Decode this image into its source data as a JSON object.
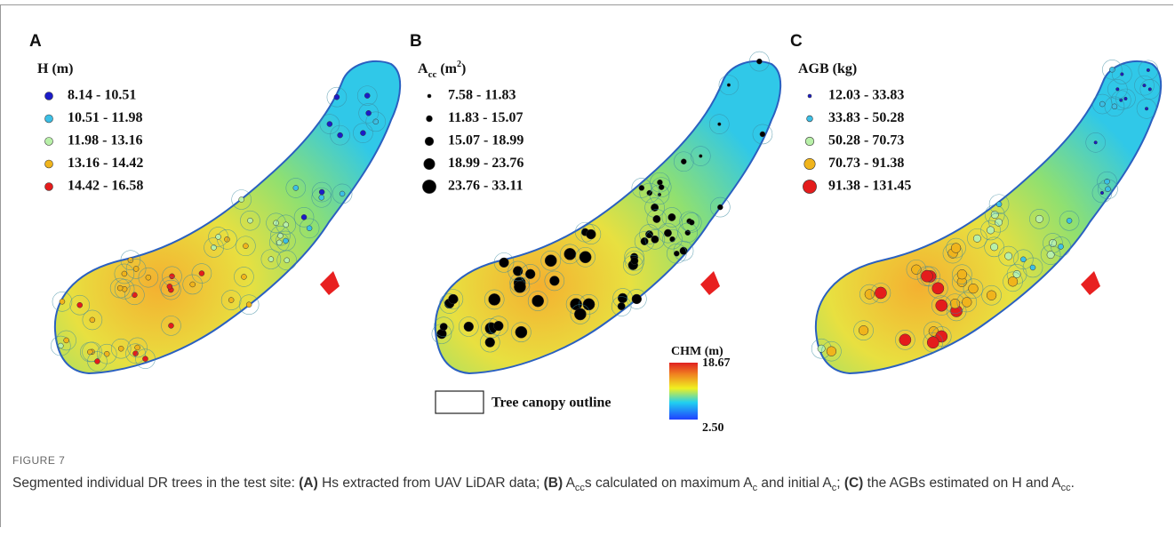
{
  "panels": [
    {
      "letter": "A",
      "legend_title": [
        {
          "text": "H (m)",
          "style": "normal"
        }
      ],
      "legend_items": [
        "8.14 - 10.51",
        "10.51 - 11.98",
        "11.98 - 13.16",
        "13.16 - 14.42",
        "14.42 - 16.58"
      ],
      "marker_colors": [
        "#1c1cc8",
        "#3cc0e6",
        "#b8f0a8",
        "#f0b41c",
        "#e41c1c"
      ],
      "marker_sizing": false
    },
    {
      "letter": "B",
      "legend_title": [
        {
          "text": "A",
          "style": "normal"
        },
        {
          "text": "cc",
          "style": "sub"
        },
        {
          "text": " (m",
          "style": "normal"
        },
        {
          "text": "2",
          "style": "sup"
        },
        {
          "text": ")",
          "style": "normal"
        }
      ],
      "legend_items": [
        "7.58 - 11.83",
        "11.83 - 15.07",
        "15.07 - 18.99",
        "18.99 - 23.76",
        "23.76 - 33.11"
      ],
      "marker_colors": [
        "#000000",
        "#000000",
        "#000000",
        "#000000",
        "#000000"
      ],
      "marker_sizing": true
    },
    {
      "letter": "C",
      "legend_title": [
        {
          "text": "AGB (kg)",
          "style": "normal"
        }
      ],
      "legend_items": [
        "12.03 - 33.83",
        "33.83 - 50.28",
        "50.28 - 70.73",
        "70.73 - 91.38",
        "91.38 - 131.45"
      ],
      "marker_colors": [
        "#1c1cc8",
        "#3cc0e6",
        "#b8f0a8",
        "#f0b41c",
        "#e41c1c"
      ],
      "marker_sizing": true
    }
  ],
  "canopy_legend": "Tree canopy outline",
  "chm": {
    "title": "CHM (m)",
    "max": "18.67",
    "min": "2.50"
  },
  "caption": {
    "label": "FIGURE 7",
    "segments": [
      {
        "text": "Segmented individual DR trees in the test site: ",
        "style": "normal"
      },
      {
        "text": "(A)",
        "style": "bold"
      },
      {
        "text": " Hs extracted from UAV LiDAR data; ",
        "style": "normal"
      },
      {
        "text": "(B)",
        "style": "bold"
      },
      {
        "text": " A",
        "style": "normal"
      },
      {
        "text": "cc",
        "style": "sub"
      },
      {
        "text": "s calculated on maximum A",
        "style": "normal"
      },
      {
        "text": "c",
        "style": "sub"
      },
      {
        "text": " and initial A",
        "style": "normal"
      },
      {
        "text": "c",
        "style": "sub"
      },
      {
        "text": "; ",
        "style": "normal"
      },
      {
        "text": "(C)",
        "style": "bold"
      },
      {
        "text": " the AGBs estimated on H and A",
        "style": "normal"
      },
      {
        "text": "cc",
        "style": "sub"
      },
      {
        "text": ".",
        "style": "normal"
      }
    ]
  }
}
